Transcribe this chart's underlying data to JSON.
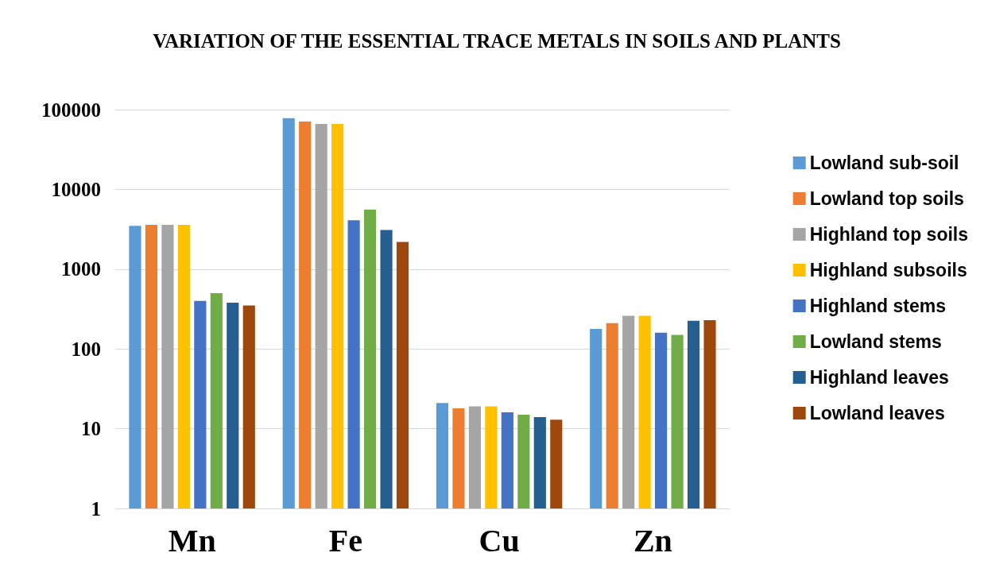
{
  "chart_data": {
    "type": "bar",
    "title": "VARIATION OF THE ESSENTIAL TRACE METALS IN SOILS AND PLANTS",
    "categories": [
      "Mn",
      "Fe",
      "Cu",
      "Zn"
    ],
    "log": "y",
    "ylim": [
      1,
      100000
    ],
    "yticks": [
      1,
      10,
      100,
      1000,
      10000,
      100000
    ],
    "grid": "y",
    "legend": "right",
    "series": [
      {
        "name": "Lowland sub-soil",
        "color": "#5b9bd5",
        "values": [
          3500,
          78000,
          21,
          178
        ]
      },
      {
        "name": "Lowland top soils",
        "color": "#ed7d31",
        "values": [
          3600,
          71000,
          18,
          210
        ]
      },
      {
        "name": "Highland top soils",
        "color": "#a5a5a5",
        "values": [
          3600,
          66000,
          19,
          260
        ]
      },
      {
        "name": "Highland subsoils",
        "color": "#ffc000",
        "values": [
          3600,
          66000,
          19,
          260
        ]
      },
      {
        "name": "Highland stems",
        "color": "#4472c4",
        "values": [
          400,
          4100,
          16,
          160
        ]
      },
      {
        "name": "Lowland stems",
        "color": "#70ad47",
        "values": [
          500,
          5600,
          15,
          150
        ]
      },
      {
        "name": "Highland leaves",
        "color": "#255e91",
        "values": [
          380,
          3100,
          14,
          225
        ]
      },
      {
        "name": "Lowland leaves",
        "color": "#9e480e",
        "values": [
          350,
          2200,
          13,
          230
        ]
      }
    ]
  }
}
